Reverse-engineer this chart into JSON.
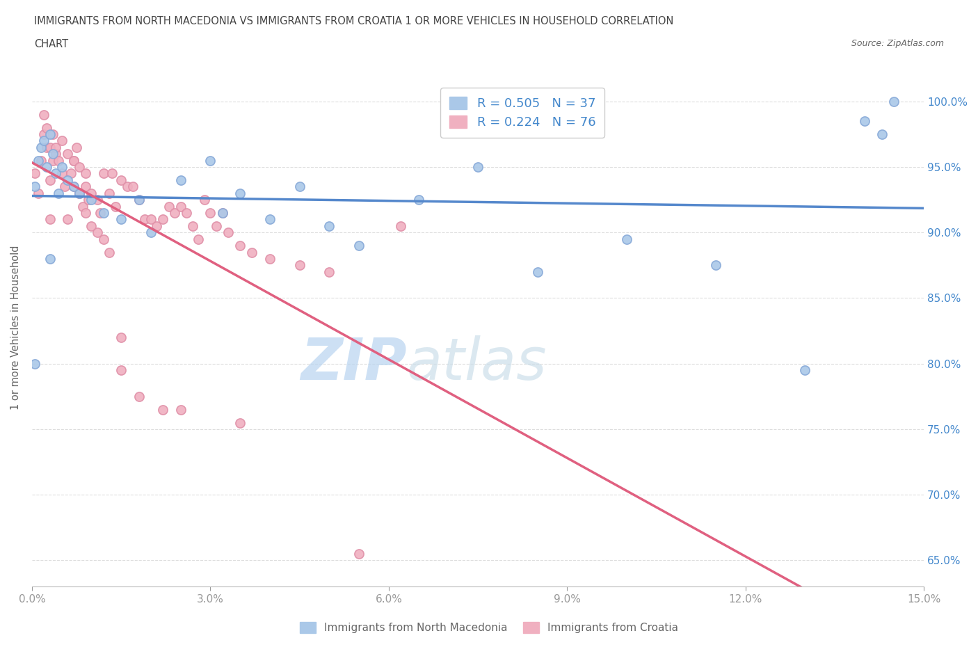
{
  "title_line1": "IMMIGRANTS FROM NORTH MACEDONIA VS IMMIGRANTS FROM CROATIA 1 OR MORE VEHICLES IN HOUSEHOLD CORRELATION",
  "title_line2": "CHART",
  "source_text": "Source: ZipAtlas.com",
  "ylabel": "1 or more Vehicles in Household",
  "xmin": 0.0,
  "xmax": 15.0,
  "ymin": 63.0,
  "ymax": 102.5,
  "yticks": [
    65.0,
    70.0,
    75.0,
    80.0,
    85.0,
    90.0,
    95.0,
    100.0
  ],
  "xticks": [
    0.0,
    3.0,
    6.0,
    9.0,
    12.0,
    15.0
  ],
  "xtick_labels": [
    "0.0%",
    "3.0%",
    "6.0%",
    "9.0%",
    "12.0%",
    "15.0%"
  ],
  "ytick_labels": [
    "65.0%",
    "70.0%",
    "75.0%",
    "80.0%",
    "85.0%",
    "90.0%",
    "95.0%",
    "100.0%"
  ],
  "watermark_part1": "ZIP",
  "watermark_part2": "atlas",
  "R_macedonia": 0.505,
  "N_macedonia": 37,
  "R_croatia": 0.224,
  "N_croatia": 76,
  "line_color_macedonia": "#5588cc",
  "line_color_croatia": "#e06080",
  "dot_color_macedonia": "#aac8e8",
  "dot_color_croatia": "#f0b0c0",
  "dot_edge_macedonia": "#88aad8",
  "dot_edge_croatia": "#e090a8",
  "background_color": "#ffffff",
  "grid_color": "#dddddd",
  "title_color": "#444444",
  "axis_label_color": "#666666",
  "tick_color": "#999999",
  "legend_text_color": "#4488cc",
  "watermark_color1": "#b8d4f0",
  "watermark_color2": "#c8dce8",
  "macedonia_x": [
    0.05,
    0.1,
    0.15,
    0.2,
    0.25,
    0.3,
    0.35,
    0.4,
    0.45,
    0.5,
    0.6,
    0.7,
    0.8,
    1.0,
    1.2,
    1.5,
    1.8,
    2.0,
    2.5,
    3.0,
    3.2,
    3.5,
    4.0,
    4.5,
    5.0,
    5.5,
    6.5,
    7.5,
    8.5,
    10.0,
    11.5,
    13.0,
    14.0,
    14.3,
    14.5,
    0.05,
    0.3
  ],
  "macedonia_y": [
    93.5,
    95.5,
    96.5,
    97.0,
    95.0,
    97.5,
    96.0,
    94.5,
    93.0,
    95.0,
    94.0,
    93.5,
    93.0,
    92.5,
    91.5,
    91.0,
    92.5,
    90.0,
    94.0,
    95.5,
    91.5,
    93.0,
    91.0,
    93.5,
    90.5,
    89.0,
    92.5,
    95.0,
    87.0,
    89.5,
    87.5,
    79.5,
    98.5,
    97.5,
    100.0,
    80.0,
    88.0
  ],
  "croatia_x": [
    0.05,
    0.1,
    0.15,
    0.2,
    0.25,
    0.3,
    0.35,
    0.4,
    0.45,
    0.5,
    0.55,
    0.6,
    0.65,
    0.7,
    0.75,
    0.8,
    0.85,
    0.9,
    0.95,
    1.0,
    1.1,
    1.15,
    1.2,
    1.3,
    1.35,
    1.4,
    1.5,
    1.6,
    1.7,
    1.8,
    1.9,
    2.0,
    2.1,
    2.2,
    2.3,
    2.4,
    2.5,
    2.6,
    2.7,
    2.8,
    2.9,
    3.0,
    3.1,
    3.2,
    3.3,
    3.5,
    3.7,
    4.0,
    4.5,
    5.0,
    1.5,
    1.8,
    2.2,
    0.3,
    0.35,
    0.4,
    0.5,
    0.6,
    0.7,
    0.8,
    0.9,
    0.7,
    0.8,
    0.9,
    1.0,
    1.1,
    1.2,
    1.3,
    0.2,
    0.25,
    0.3,
    6.2,
    1.5,
    2.5,
    3.5,
    5.5
  ],
  "croatia_y": [
    94.5,
    93.0,
    95.5,
    97.5,
    96.5,
    94.0,
    95.5,
    96.0,
    95.5,
    94.5,
    93.5,
    91.0,
    94.5,
    95.5,
    96.5,
    93.0,
    92.0,
    93.5,
    92.5,
    93.0,
    92.5,
    91.5,
    94.5,
    93.0,
    94.5,
    92.0,
    94.0,
    93.5,
    93.5,
    92.5,
    91.0,
    91.0,
    90.5,
    91.0,
    92.0,
    91.5,
    92.0,
    91.5,
    90.5,
    89.5,
    92.5,
    91.5,
    90.5,
    91.5,
    90.0,
    89.0,
    88.5,
    88.0,
    87.5,
    87.0,
    79.5,
    77.5,
    76.5,
    96.5,
    97.5,
    96.5,
    97.0,
    96.0,
    95.5,
    95.0,
    94.5,
    93.5,
    93.0,
    91.5,
    90.5,
    90.0,
    89.5,
    88.5,
    99.0,
    98.0,
    91.0,
    90.5,
    82.0,
    76.5,
    75.5,
    65.5
  ]
}
